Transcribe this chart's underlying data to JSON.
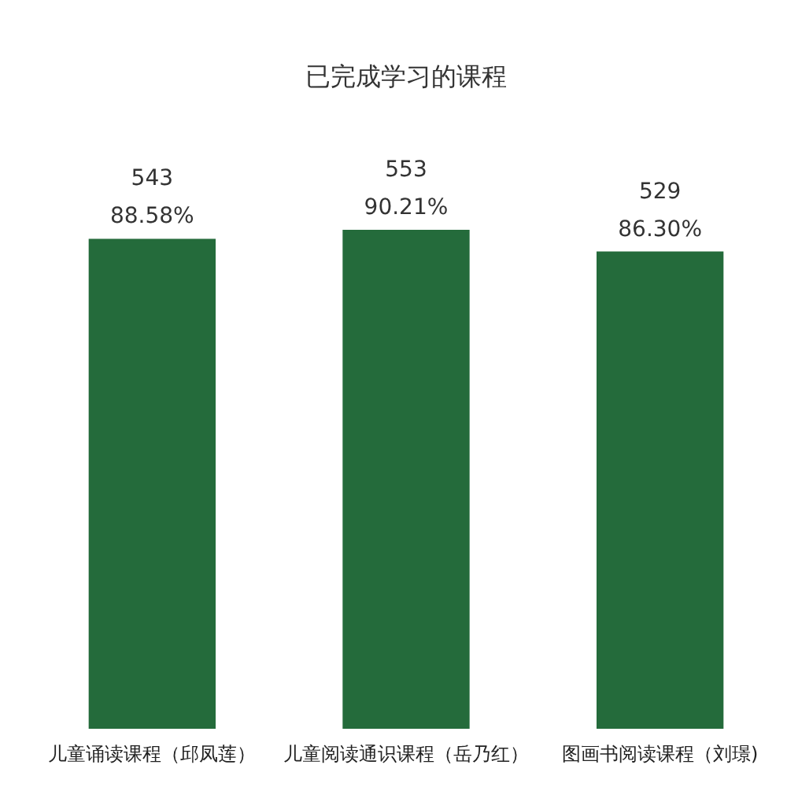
{
  "chart_data": {
    "type": "bar",
    "title": "已完成学习的课程",
    "categories": [
      "儿童诵读课程（邱凤莲）",
      "儿童阅读通识课程（岳乃红）",
      "图画书阅读课程（刘璟)"
    ],
    "values": [
      543,
      553,
      529
    ],
    "value_labels": [
      "543\n88.58%",
      "553\n90.21%",
      "529\n86.30%"
    ],
    "color": "#246b3b",
    "tick_labels": "x"
  }
}
